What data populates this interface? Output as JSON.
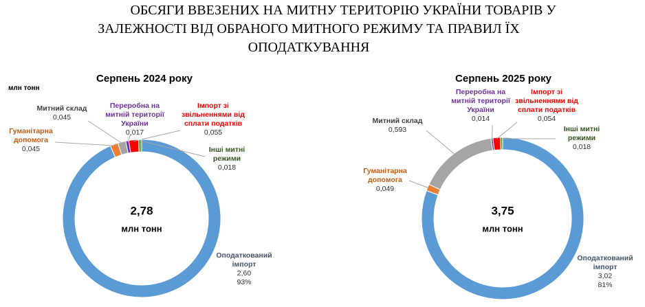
{
  "title": [
    "ОБСЯГИ ВВЕЗЕНИХ НА МИТНУ ТЕРИТОРІЮ УКРАЇНИ ТОВАРІВ У",
    "ЗАЛЕЖНОСТІ ВІД ОБРАНОГО МИТНОГО РЕЖИМУ ТА ПРАВИЛ ЇХ",
    "ОПОДАТКУВАННЯ"
  ],
  "unit": "млн тонн",
  "chart_data": [
    {
      "type": "pie",
      "title": "Серпень 2024 року",
      "center_text": [
        "2,78",
        "млн тонн"
      ],
      "categories": [
        "Оподаткований імпорт",
        "Гуманітарна допомога",
        "Митний склад",
        "Переробна на митній території України",
        "Імпорт зі звільненнями від сплати податків",
        "Інші митні режими"
      ],
      "values": [
        2.6,
        0.045,
        0.045,
        0.017,
        0.055,
        0.018
      ],
      "value_labels": [
        "2,60",
        "0,045",
        "0,045",
        "0,017",
        "0,055",
        "0,018"
      ],
      "percents": [
        93,
        null,
        null,
        null,
        null,
        null
      ],
      "percent_labels": [
        "93%",
        null,
        null,
        null,
        null,
        null
      ],
      "colors": [
        "#5b9bd5",
        "#ed7d31",
        "#a5a5a5",
        "#7030a0",
        "#ff0000",
        "#70ad47"
      ],
      "label_colors": [
        "#44546a",
        "#c55a11",
        "#404040",
        "#7030a0",
        "#ff0000",
        "#375623"
      ]
    },
    {
      "type": "pie",
      "title": "Серпень 2025  року",
      "center_text": [
        "3,75",
        "млн тонн"
      ],
      "categories": [
        "Оподаткований імпорт",
        "Гуманітарна допомога",
        "Митний склад",
        "Переробна на митній території України",
        "Імпорт зі звільненнями від сплати податків",
        "Інші митні режими"
      ],
      "values": [
        3.02,
        0.049,
        0.593,
        0.014,
        0.054,
        0.018
      ],
      "value_labels": [
        "3,02",
        "0,049",
        "0,593",
        "0,014",
        "0,054",
        "0,018"
      ],
      "percents": [
        81,
        null,
        null,
        null,
        null,
        null
      ],
      "percent_labels": [
        "81%",
        null,
        null,
        null,
        null,
        null
      ],
      "colors": [
        "#5b9bd5",
        "#ed7d31",
        "#a5a5a5",
        "#7030a0",
        "#ff0000",
        "#70ad47"
      ],
      "label_colors": [
        "#44546a",
        "#c55a11",
        "#404040",
        "#7030a0",
        "#ff0000",
        "#375623"
      ]
    }
  ]
}
